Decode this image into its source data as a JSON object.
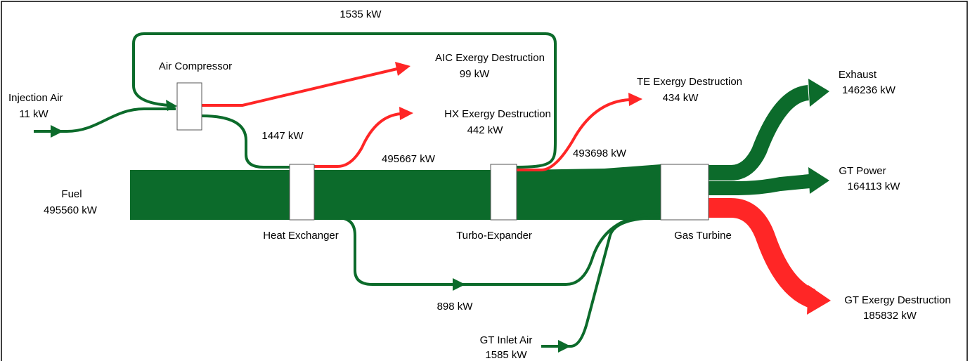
{
  "nodes": [
    {
      "label": "Air Compressor"
    },
    {
      "label": "Heat Exchanger"
    },
    {
      "label": "Turbo-Expander"
    },
    {
      "label": "Gas Turbine"
    }
  ],
  "sources": [
    {
      "label": "Injection Air",
      "value": "11 kW"
    },
    {
      "label": "Fuel",
      "value": "495560 kW"
    },
    {
      "label": "GT Inlet Air",
      "value": "1585 kW"
    }
  ],
  "sinks": [
    {
      "label": "AIC Exergy Destruction",
      "value": "99 kW"
    },
    {
      "label": "HX Exergy Destruction",
      "value": "442 kW"
    },
    {
      "label": "TE Exergy Destruction",
      "value": "434 kW"
    },
    {
      "label": "Exhaust",
      "value": "146236 kW"
    },
    {
      "label": "GT Power",
      "value": "164113 kW"
    },
    {
      "label": "GT Exergy Destruction",
      "value": "185832 kW"
    }
  ],
  "flows": [
    "1535 kW",
    "1447 kW",
    "495667 kW",
    "493698 kW",
    "898 kW"
  ]
}
